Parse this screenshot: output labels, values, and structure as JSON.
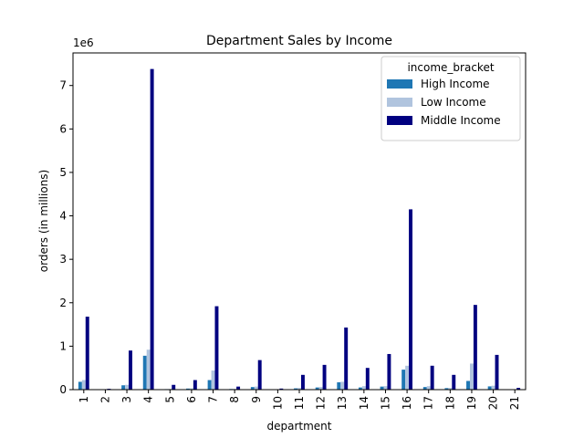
{
  "chart_data": {
    "type": "bar",
    "title": "Department Sales by Income",
    "xlabel": "department",
    "ylabel": "orders (in millions)",
    "y_offset_label": "1e6",
    "categories": [
      "1",
      "2",
      "3",
      "4",
      "5",
      "6",
      "7",
      "8",
      "9",
      "10",
      "11",
      "12",
      "13",
      "14",
      "15",
      "16",
      "17",
      "18",
      "19",
      "20",
      "21"
    ],
    "ylim": [
      0,
      7750000
    ],
    "yticks": [
      0,
      1000000,
      2000000,
      3000000,
      4000000,
      5000000,
      6000000,
      7000000
    ],
    "ytick_labels": [
      "0",
      "1",
      "2",
      "3",
      "4",
      "5",
      "6",
      "7"
    ],
    "legend": {
      "title": "income_bracket",
      "placement": "top-right"
    },
    "series": [
      {
        "name": "High Income",
        "color": "#1f77b4",
        "values": [
          180000,
          8000,
          100000,
          780000,
          12000,
          25000,
          220000,
          15000,
          60000,
          8000,
          30000,
          50000,
          170000,
          50000,
          70000,
          460000,
          60000,
          35000,
          200000,
          75000,
          6000
        ]
      },
      {
        "name": "Low Income",
        "color": "#b0c4de",
        "values": [
          220000,
          10000,
          110000,
          920000,
          15000,
          30000,
          440000,
          18000,
          70000,
          10000,
          40000,
          60000,
          180000,
          80000,
          80000,
          550000,
          80000,
          40000,
          600000,
          90000,
          8000
        ]
      },
      {
        "name": "Middle Income",
        "color": "#000080",
        "values": [
          1680000,
          20000,
          900000,
          7380000,
          110000,
          220000,
          1920000,
          70000,
          680000,
          25000,
          340000,
          570000,
          1430000,
          500000,
          820000,
          4150000,
          550000,
          340000,
          1950000,
          800000,
          40000
        ]
      }
    ]
  }
}
